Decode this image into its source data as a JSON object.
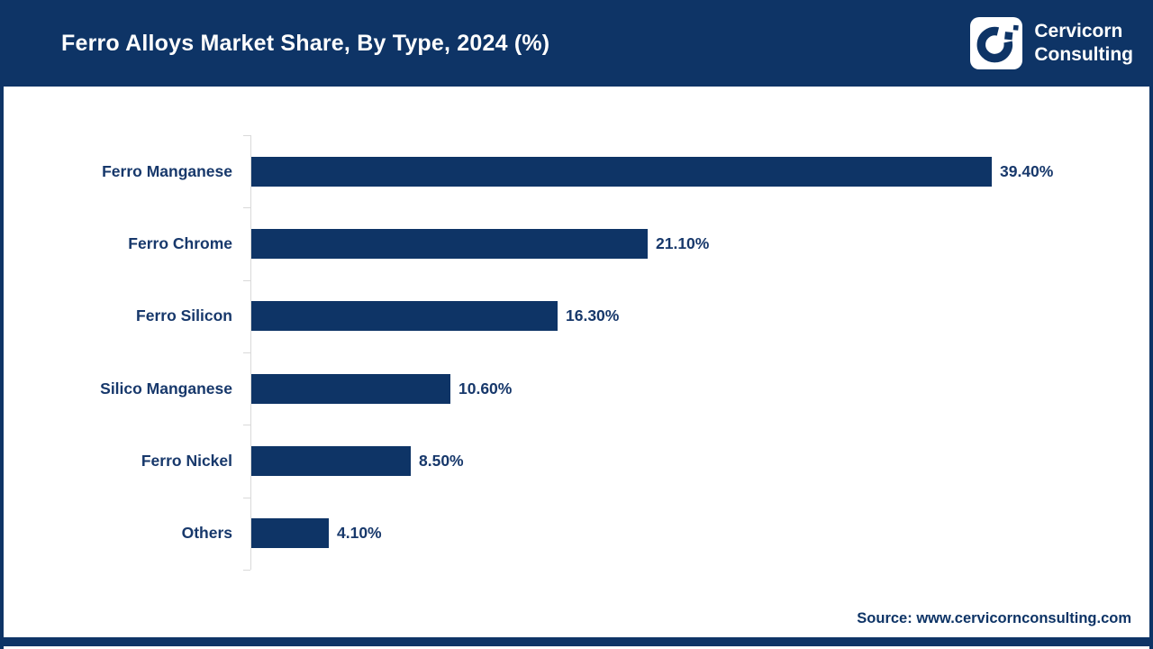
{
  "header": {
    "title": "Ferro Alloys Market Share, By Type, 2024 (%)",
    "brand_line1": "Cervicorn",
    "brand_line2": "Consulting"
  },
  "chart_data": {
    "type": "bar",
    "orientation": "horizontal",
    "title": "Ferro Alloys Market Share, By Type, 2024 (%)",
    "categories": [
      "Ferro Manganese",
      "Ferro Chrome",
      "Ferro Silicon",
      "Silico Manganese",
      "Ferro Nickel",
      "Others"
    ],
    "values": [
      39.4,
      21.1,
      16.3,
      10.6,
      8.5,
      4.1
    ],
    "value_labels": [
      "39.40%",
      "21.10%",
      "16.30%",
      "10.60%",
      "8.50%",
      "4.10%"
    ],
    "xlabel": "",
    "ylabel": "",
    "xlim": [
      0,
      40
    ],
    "grid": false,
    "legend": "none",
    "bar_color": "#0e3466"
  },
  "footer": {
    "source": "Source: www.cervicornconsulting.com"
  },
  "colors": {
    "navy": "#0e3466",
    "text_navy": "#17386b",
    "axis_gray": "#d9d9d9",
    "background": "#ffffff"
  }
}
